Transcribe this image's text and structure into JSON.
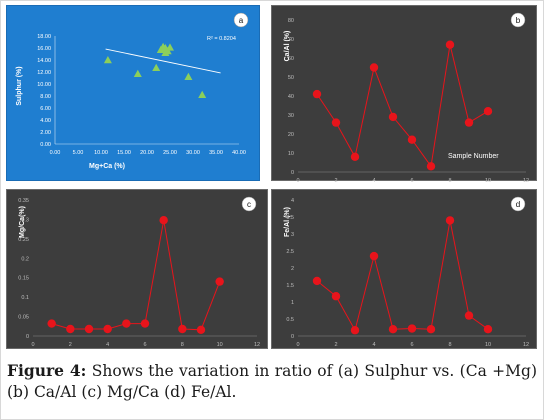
{
  "caption": {
    "label": "Figure 4:",
    "text": " Shows the variation in ratio of (a) Sulphur vs. (Ca +Mg) (b) Ca/Al (c) Mg/Ca (d) Fe/Al."
  },
  "colors": {
    "panel_a_bg": "#1f7ed0",
    "panel_dark_bg": "#3d3d3d",
    "scatter_marker": "#8ccf5a",
    "trendline": "#ffffff",
    "series_marker": "#e8141b",
    "series_line": "#e8141b"
  },
  "chart_data": [
    {
      "id": "a",
      "type": "scatter",
      "panel_label": "a",
      "xlabel": "Mg+Ca (%)",
      "ylabel": "Sulphur (%)",
      "annotation": "R² = 0.8204",
      "xlim": [
        0,
        40
      ],
      "ylim": [
        0,
        18
      ],
      "xticks": [
        "0.00",
        "5.00",
        "10.00",
        "15.00",
        "20.00",
        "25.00",
        "30.00",
        "35.00",
        "40.00"
      ],
      "yticks": [
        "0.00",
        "2.00",
        "4.00",
        "6.00",
        "8.00",
        "10.00",
        "12.00",
        "14.00",
        "16.00",
        "18.00"
      ],
      "x": [
        11.5,
        18,
        22,
        23,
        23.5,
        24,
        24.5,
        25,
        24,
        29,
        32
      ],
      "y": [
        14,
        11.7,
        12.7,
        15.7,
        16.2,
        16,
        15.5,
        16.1,
        15.2,
        11.2,
        8.2
      ],
      "marker": "triangle",
      "grid": false,
      "trendline": true
    },
    {
      "id": "b",
      "type": "line",
      "panel_label": "b",
      "ylabel": "Ca/Al (%)",
      "annotation": "Sample Number",
      "xlim": [
        0,
        12
      ],
      "ylim": [
        0,
        80
      ],
      "xticks": [
        "0",
        "2",
        "4",
        "6",
        "8",
        "10",
        "12"
      ],
      "yticks": [
        "0",
        "10",
        "20",
        "30",
        "40",
        "50",
        "60",
        "70",
        "80"
      ],
      "x": [
        1,
        2,
        3,
        4,
        5,
        6,
        7,
        8,
        9,
        10
      ],
      "y": [
        41,
        26,
        8,
        55,
        29,
        17,
        3,
        67,
        26,
        32
      ],
      "grid": false
    },
    {
      "id": "c",
      "type": "line",
      "panel_label": "c",
      "ylabel": "Mg/Ca(%)",
      "xlim": [
        0,
        12
      ],
      "ylim": [
        0,
        0.35
      ],
      "xticks": [
        "0",
        "2",
        "4",
        "6",
        "8",
        "10",
        "12"
      ],
      "yticks": [
        "0",
        "0.05",
        "0.1",
        "0.15",
        "0.2",
        "0.25",
        "0.3",
        "0.35"
      ],
      "x": [
        1,
        2,
        3,
        4,
        5,
        6,
        7,
        8,
        9,
        10
      ],
      "y": [
        0.032,
        0.018,
        0.018,
        0.018,
        0.032,
        0.032,
        0.298,
        0.018,
        0.016,
        0.14
      ],
      "grid": false
    },
    {
      "id": "d",
      "type": "line",
      "panel_label": "d",
      "ylabel": "Fe/Al (%)",
      "xlim": [
        0,
        12
      ],
      "ylim": [
        0,
        4
      ],
      "xticks": [
        "0",
        "2",
        "4",
        "6",
        "8",
        "10",
        "12"
      ],
      "yticks": [
        "0",
        "0.5",
        "1",
        "1.5",
        "2",
        "2.5",
        "3",
        "3.5",
        "4"
      ],
      "x": [
        1,
        2,
        3,
        4,
        5,
        6,
        7,
        8,
        9,
        10
      ],
      "y": [
        1.62,
        1.17,
        0.17,
        2.35,
        0.2,
        0.22,
        0.2,
        3.4,
        0.6,
        0.2
      ],
      "grid": false
    }
  ]
}
